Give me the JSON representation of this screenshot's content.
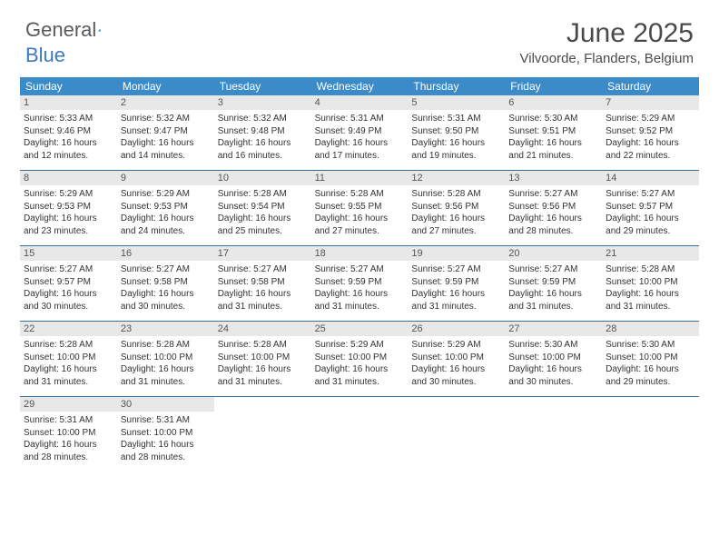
{
  "logo": {
    "text1": "General",
    "text2": "Blue"
  },
  "title": "June 2025",
  "location": "Vilvoorde, Flanders, Belgium",
  "colors": {
    "header_bg": "#3b8bc9",
    "row_border": "#3b6fa0",
    "daynum_bg": "#e8e8e8",
    "text": "#333333"
  },
  "weekdays": [
    "Sunday",
    "Monday",
    "Tuesday",
    "Wednesday",
    "Thursday",
    "Friday",
    "Saturday"
  ],
  "weeks": [
    [
      {
        "n": "1",
        "sr": "Sunrise: 5:33 AM",
        "ss": "Sunset: 9:46 PM",
        "d1": "Daylight: 16 hours",
        "d2": "and 12 minutes."
      },
      {
        "n": "2",
        "sr": "Sunrise: 5:32 AM",
        "ss": "Sunset: 9:47 PM",
        "d1": "Daylight: 16 hours",
        "d2": "and 14 minutes."
      },
      {
        "n": "3",
        "sr": "Sunrise: 5:32 AM",
        "ss": "Sunset: 9:48 PM",
        "d1": "Daylight: 16 hours",
        "d2": "and 16 minutes."
      },
      {
        "n": "4",
        "sr": "Sunrise: 5:31 AM",
        "ss": "Sunset: 9:49 PM",
        "d1": "Daylight: 16 hours",
        "d2": "and 17 minutes."
      },
      {
        "n": "5",
        "sr": "Sunrise: 5:31 AM",
        "ss": "Sunset: 9:50 PM",
        "d1": "Daylight: 16 hours",
        "d2": "and 19 minutes."
      },
      {
        "n": "6",
        "sr": "Sunrise: 5:30 AM",
        "ss": "Sunset: 9:51 PM",
        "d1": "Daylight: 16 hours",
        "d2": "and 21 minutes."
      },
      {
        "n": "7",
        "sr": "Sunrise: 5:29 AM",
        "ss": "Sunset: 9:52 PM",
        "d1": "Daylight: 16 hours",
        "d2": "and 22 minutes."
      }
    ],
    [
      {
        "n": "8",
        "sr": "Sunrise: 5:29 AM",
        "ss": "Sunset: 9:53 PM",
        "d1": "Daylight: 16 hours",
        "d2": "and 23 minutes."
      },
      {
        "n": "9",
        "sr": "Sunrise: 5:29 AM",
        "ss": "Sunset: 9:53 PM",
        "d1": "Daylight: 16 hours",
        "d2": "and 24 minutes."
      },
      {
        "n": "10",
        "sr": "Sunrise: 5:28 AM",
        "ss": "Sunset: 9:54 PM",
        "d1": "Daylight: 16 hours",
        "d2": "and 25 minutes."
      },
      {
        "n": "11",
        "sr": "Sunrise: 5:28 AM",
        "ss": "Sunset: 9:55 PM",
        "d1": "Daylight: 16 hours",
        "d2": "and 27 minutes."
      },
      {
        "n": "12",
        "sr": "Sunrise: 5:28 AM",
        "ss": "Sunset: 9:56 PM",
        "d1": "Daylight: 16 hours",
        "d2": "and 27 minutes."
      },
      {
        "n": "13",
        "sr": "Sunrise: 5:27 AM",
        "ss": "Sunset: 9:56 PM",
        "d1": "Daylight: 16 hours",
        "d2": "and 28 minutes."
      },
      {
        "n": "14",
        "sr": "Sunrise: 5:27 AM",
        "ss": "Sunset: 9:57 PM",
        "d1": "Daylight: 16 hours",
        "d2": "and 29 minutes."
      }
    ],
    [
      {
        "n": "15",
        "sr": "Sunrise: 5:27 AM",
        "ss": "Sunset: 9:57 PM",
        "d1": "Daylight: 16 hours",
        "d2": "and 30 minutes."
      },
      {
        "n": "16",
        "sr": "Sunrise: 5:27 AM",
        "ss": "Sunset: 9:58 PM",
        "d1": "Daylight: 16 hours",
        "d2": "and 30 minutes."
      },
      {
        "n": "17",
        "sr": "Sunrise: 5:27 AM",
        "ss": "Sunset: 9:58 PM",
        "d1": "Daylight: 16 hours",
        "d2": "and 31 minutes."
      },
      {
        "n": "18",
        "sr": "Sunrise: 5:27 AM",
        "ss": "Sunset: 9:59 PM",
        "d1": "Daylight: 16 hours",
        "d2": "and 31 minutes."
      },
      {
        "n": "19",
        "sr": "Sunrise: 5:27 AM",
        "ss": "Sunset: 9:59 PM",
        "d1": "Daylight: 16 hours",
        "d2": "and 31 minutes."
      },
      {
        "n": "20",
        "sr": "Sunrise: 5:27 AM",
        "ss": "Sunset: 9:59 PM",
        "d1": "Daylight: 16 hours",
        "d2": "and 31 minutes."
      },
      {
        "n": "21",
        "sr": "Sunrise: 5:28 AM",
        "ss": "Sunset: 10:00 PM",
        "d1": "Daylight: 16 hours",
        "d2": "and 31 minutes."
      }
    ],
    [
      {
        "n": "22",
        "sr": "Sunrise: 5:28 AM",
        "ss": "Sunset: 10:00 PM",
        "d1": "Daylight: 16 hours",
        "d2": "and 31 minutes."
      },
      {
        "n": "23",
        "sr": "Sunrise: 5:28 AM",
        "ss": "Sunset: 10:00 PM",
        "d1": "Daylight: 16 hours",
        "d2": "and 31 minutes."
      },
      {
        "n": "24",
        "sr": "Sunrise: 5:28 AM",
        "ss": "Sunset: 10:00 PM",
        "d1": "Daylight: 16 hours",
        "d2": "and 31 minutes."
      },
      {
        "n": "25",
        "sr": "Sunrise: 5:29 AM",
        "ss": "Sunset: 10:00 PM",
        "d1": "Daylight: 16 hours",
        "d2": "and 31 minutes."
      },
      {
        "n": "26",
        "sr": "Sunrise: 5:29 AM",
        "ss": "Sunset: 10:00 PM",
        "d1": "Daylight: 16 hours",
        "d2": "and 30 minutes."
      },
      {
        "n": "27",
        "sr": "Sunrise: 5:30 AM",
        "ss": "Sunset: 10:00 PM",
        "d1": "Daylight: 16 hours",
        "d2": "and 30 minutes."
      },
      {
        "n": "28",
        "sr": "Sunrise: 5:30 AM",
        "ss": "Sunset: 10:00 PM",
        "d1": "Daylight: 16 hours",
        "d2": "and 29 minutes."
      }
    ],
    [
      {
        "n": "29",
        "sr": "Sunrise: 5:31 AM",
        "ss": "Sunset: 10:00 PM",
        "d1": "Daylight: 16 hours",
        "d2": "and 28 minutes."
      },
      {
        "n": "30",
        "sr": "Sunrise: 5:31 AM",
        "ss": "Sunset: 10:00 PM",
        "d1": "Daylight: 16 hours",
        "d2": "and 28 minutes."
      },
      {
        "n": "",
        "sr": "",
        "ss": "",
        "d1": "",
        "d2": ""
      },
      {
        "n": "",
        "sr": "",
        "ss": "",
        "d1": "",
        "d2": ""
      },
      {
        "n": "",
        "sr": "",
        "ss": "",
        "d1": "",
        "d2": ""
      },
      {
        "n": "",
        "sr": "",
        "ss": "",
        "d1": "",
        "d2": ""
      },
      {
        "n": "",
        "sr": "",
        "ss": "",
        "d1": "",
        "d2": ""
      }
    ]
  ]
}
